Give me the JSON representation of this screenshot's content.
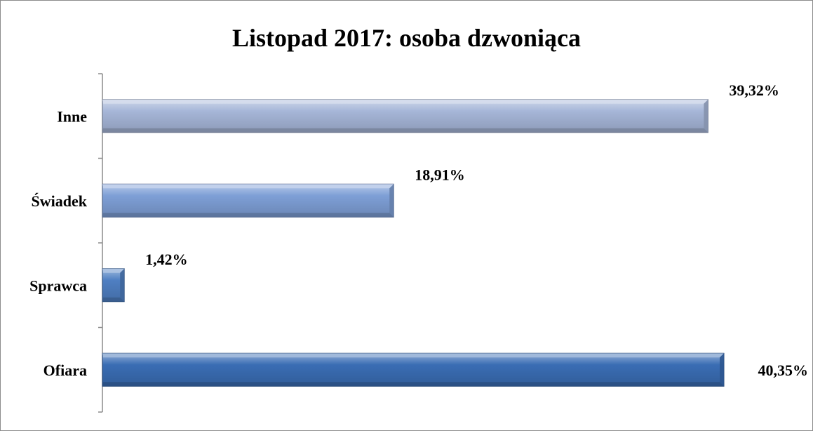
{
  "chart_data": {
    "type": "bar",
    "orientation": "horizontal",
    "title": "Listopad 2017: osoba dzwoniąca",
    "categories": [
      "Inne",
      "Świadek",
      "Sprawca",
      "Ofiara"
    ],
    "values": [
      39.32,
      18.91,
      1.42,
      40.35
    ],
    "data_labels": [
      "39,32%",
      "18,91%",
      "1,42%",
      "40,35%"
    ],
    "xlim": [
      0,
      40.35
    ],
    "grid": false,
    "legend": "none",
    "bar_colors": [
      "#a6b6d8",
      "#7e9fd6",
      "#4f7fc2",
      "#3a6db4"
    ]
  }
}
